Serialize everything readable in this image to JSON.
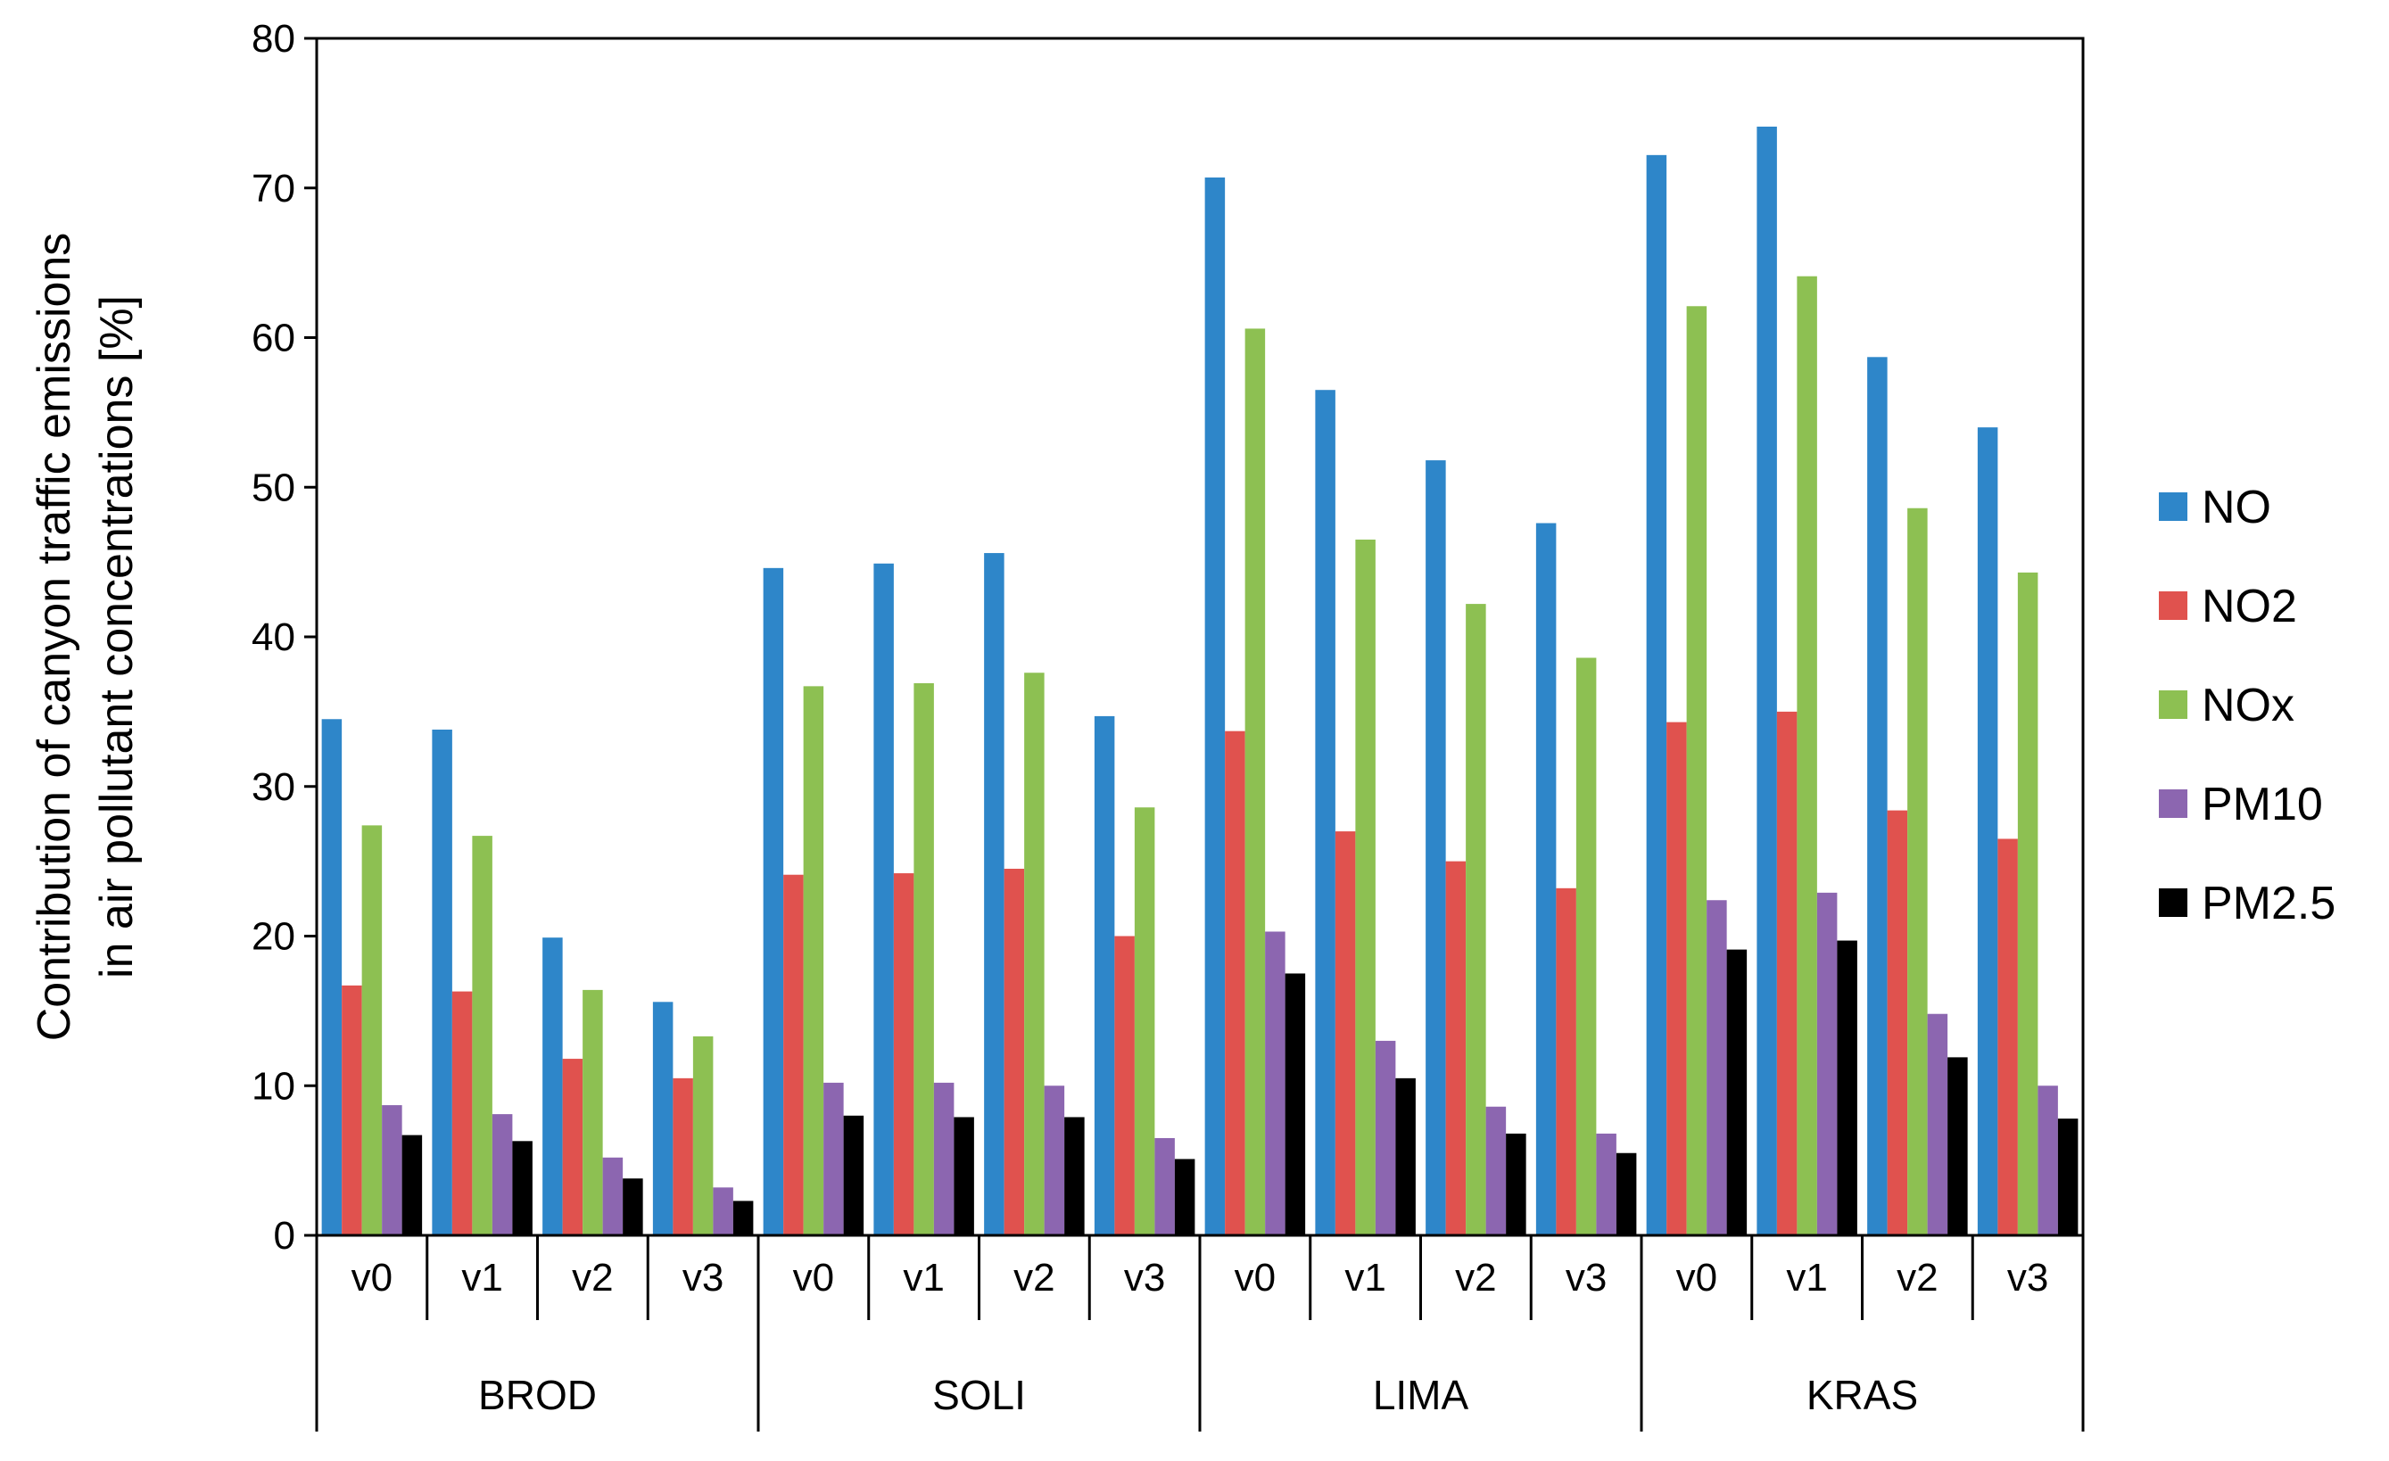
{
  "chart_data": {
    "type": "bar",
    "ylabel_lines": [
      "Contribution of canyon traffic emissions",
      "in air pollutant concentrations [%]"
    ],
    "ylim": [
      0,
      80
    ],
    "yticks": [
      0,
      10,
      20,
      30,
      40,
      50,
      60,
      70,
      80
    ],
    "grid": false,
    "legend_position": "right",
    "groups": [
      {
        "name": "BROD",
        "categories": [
          "v0",
          "v1",
          "v2",
          "v3"
        ]
      },
      {
        "name": "SOLI",
        "categories": [
          "v0",
          "v1",
          "v2",
          "v3"
        ]
      },
      {
        "name": "LIMA",
        "categories": [
          "v0",
          "v1",
          "v2",
          "v3"
        ]
      },
      {
        "name": "KRAS",
        "categories": [
          "v0",
          "v1",
          "v2",
          "v3"
        ]
      }
    ],
    "series": [
      {
        "name": "NO",
        "color": "#2E86C9",
        "values": [
          34.5,
          33.8,
          19.9,
          15.6,
          44.6,
          44.9,
          45.6,
          34.7,
          70.7,
          56.5,
          51.8,
          47.6,
          72.2,
          74.1,
          58.7,
          54.0
        ]
      },
      {
        "name": "NO2",
        "color": "#E0524E",
        "values": [
          16.7,
          16.3,
          11.8,
          10.5,
          24.1,
          24.2,
          24.5,
          20.0,
          33.7,
          27.0,
          25.0,
          23.2,
          34.3,
          35.0,
          28.4,
          26.5
        ]
      },
      {
        "name": "NOx",
        "color": "#8DC052",
        "values": [
          27.4,
          26.7,
          16.4,
          13.3,
          36.7,
          36.9,
          37.6,
          28.6,
          60.6,
          46.5,
          42.2,
          38.6,
          62.1,
          64.1,
          48.6,
          44.3
        ]
      },
      {
        "name": "PM10",
        "color": "#8C66B0",
        "values": [
          8.7,
          8.1,
          5.2,
          3.2,
          10.2,
          10.2,
          10.0,
          6.5,
          20.3,
          13.0,
          8.6,
          6.8,
          22.4,
          22.9,
          14.8,
          10.0
        ]
      },
      {
        "name": "PM2.5",
        "color": "#000000",
        "values": [
          6.7,
          6.3,
          3.8,
          2.3,
          8.0,
          7.9,
          7.9,
          5.1,
          17.5,
          10.5,
          6.8,
          5.5,
          19.1,
          19.7,
          11.9,
          7.8
        ]
      }
    ]
  }
}
